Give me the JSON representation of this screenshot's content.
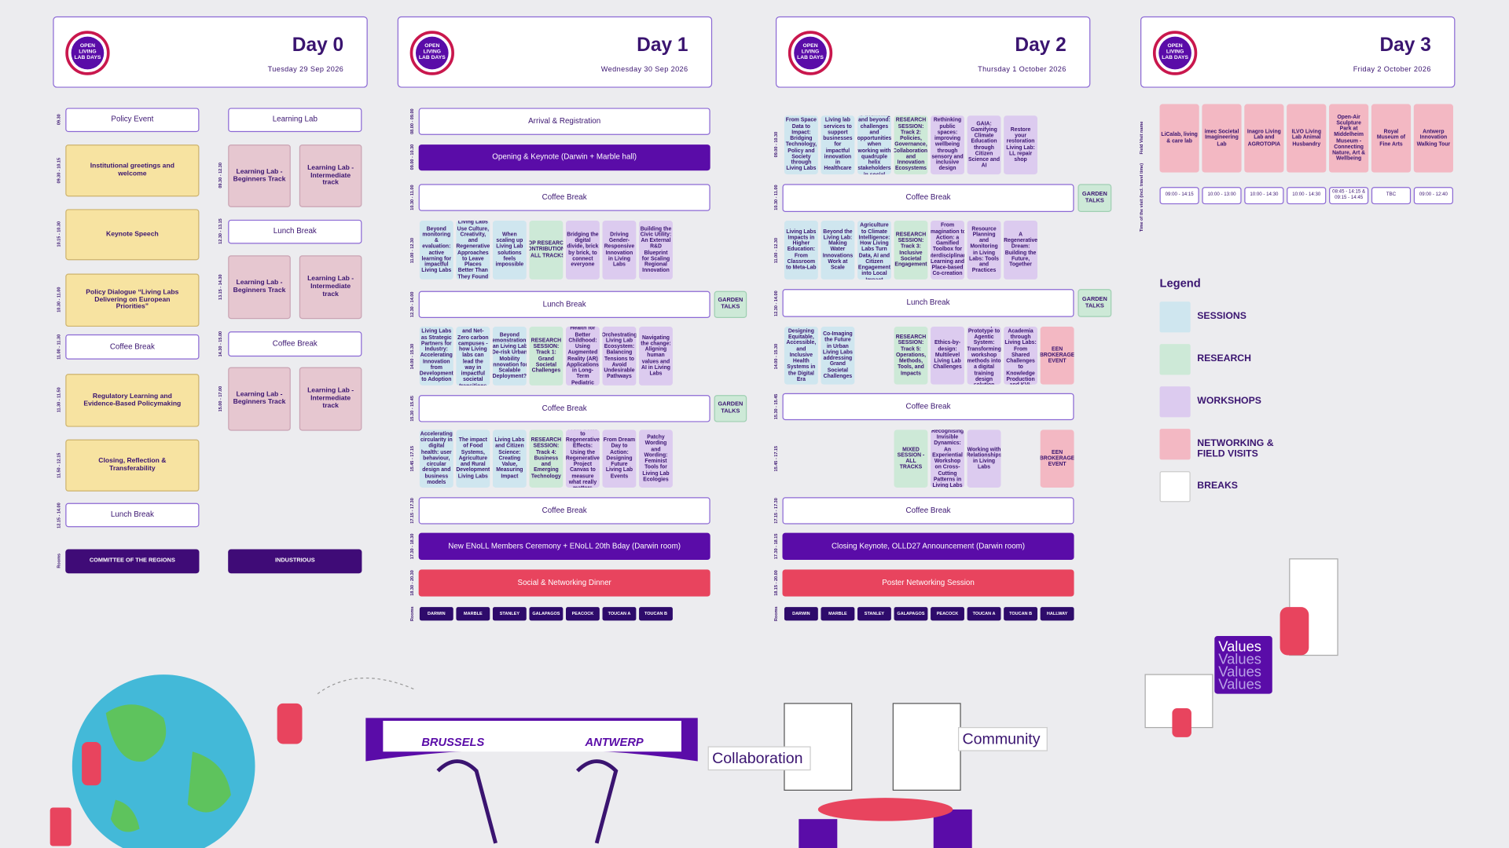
{
  "days": [
    {
      "logo": "OPEN LIVING LAB DAYS",
      "title": "Day 0",
      "date": "Tuesday 29 Sep 2026",
      "times": [
        "09.30",
        "09.30 - 10.15",
        "10.15 - 10.30",
        "10.30 - 11.00",
        "11.00 - 11.30",
        "11.30 - 11.50",
        "11.50 - 12.15",
        "12.15 - 14.00",
        "Rooms",
        "09.30 - 12.30",
        "12.30 - 13.15",
        "13.15 - 14.30",
        "14.30 - 15.00",
        "15.00 - 17.00"
      ],
      "blocks": [
        {
          "text": "Policy Event",
          "kind": "w"
        },
        {
          "text": "Institutional greetings and welcome",
          "kind": "y"
        },
        {
          "text": "Keynote Speech",
          "kind": "y"
        },
        {
          "text": "Policy Dialogue “Living Labs Delivering on European Priorities”",
          "kind": "y"
        },
        {
          "text": "Coffee Break",
          "kind": "w"
        },
        {
          "text": "Regulatory Learning and Evidence-Based Policymaking",
          "kind": "y"
        },
        {
          "text": "Closing, Reflection & Transferability",
          "kind": "y"
        },
        {
          "text": "Lunch Break",
          "kind": "w"
        },
        {
          "text": "COMMITTEE OF THE REGIONS",
          "kind": "room"
        },
        {
          "text": "Learning Lab",
          "kind": "w"
        },
        {
          "text": "Learning Lab - Beginners Track",
          "kind": "p"
        },
        {
          "text": "Learning Lab - Intermediate track",
          "kind": "p"
        },
        {
          "text": "Lunch Break",
          "kind": "w"
        },
        {
          "text": "Learning Lab - Beginners Track",
          "kind": "p"
        },
        {
          "text": "Learning Lab - Intermediate track",
          "kind": "p"
        },
        {
          "text": "Coffee Break",
          "kind": "w"
        },
        {
          "text": "Learning Lab - Beginners Track",
          "kind": "p"
        },
        {
          "text": "Learning Lab - Intermediate track",
          "kind": "p"
        },
        {
          "text": "INDUSTRIOUS",
          "kind": "room"
        }
      ]
    },
    {
      "logo": "OPEN LIVING LAB DAYS",
      "title": "Day 1",
      "date": "Wednesday 30 Sep 2026",
      "times": [
        "08.00 - 09.00",
        "09.00 - 10.30",
        "10.30 - 11.00",
        "11.00 - 12.30",
        "12.30 - 14.00",
        "14.00 - 15.30",
        "15.30 - 15.45",
        "15.45 - 17.15",
        "17.15 - 17.30",
        "17.30 - 18.30",
        "18.30 - 20.30",
        "Rooms"
      ],
      "blocks": [
        {
          "text": "Arrival & Registration",
          "kind": "w"
        },
        {
          "text": "Opening & Keynote (Darwin + Marble hall)",
          "kind": "key"
        },
        {
          "text": "Coffee Break",
          "kind": "w"
        },
        {
          "text": "Beyond monitoring & evaluation: active learning for impactful Living Labs",
          "kind": "s"
        },
        {
          "text": "How Can Living Labs Use Culture, Creativity, and Regenerative Approaches to Leave Places Better Than They Found Them?",
          "kind": "s"
        },
        {
          "text": "When scaling up Living Lab solutions feels impossible",
          "kind": "s"
        },
        {
          "text": "TOP RESEARCH CONTRIBUTIONS - ALL TRACKS",
          "kind": "r"
        },
        {
          "text": "Bridging the digital divide, brick by brick, to connect everyone",
          "kind": "k"
        },
        {
          "text": "Driving Gender-Responsive Innovation in Living Labs",
          "kind": "k"
        },
        {
          "text": "Building the Civic Utility: An External R&D Blueprint for Scaling Regional Innovation",
          "kind": "k"
        },
        {
          "text": "Lunch Break",
          "kind": "w"
        },
        {
          "text": "GARDEN TALKS",
          "kind": "g"
        },
        {
          "text": "Living Labs as Strategic Partners for Industry: Accelerating Innovation from Development to Adoption",
          "kind": "s"
        },
        {
          "text": "Sustainable and Net-Zero carbon campuses - how Living labs can lead the way in impactful societal transitions",
          "kind": "s"
        },
        {
          "text": "Beyond Demonstrations: Can Living Labs De-risk Urban Mobility Innovation for Scalable Deployment?",
          "kind": "s"
        },
        {
          "text": "RESEARCH SESSION: Track 1: Grand Societal Challenges",
          "kind": "r"
        },
        {
          "text": "Better Health for Better Childhood: Using Augmented Reality (AR) Applications in Long-Term Pediatric Care",
          "kind": "k"
        },
        {
          "text": "Orchestrating Living Lab Ecosystem: Balancing Tensions to Avoid Undesirable Pathways",
          "kind": "k"
        },
        {
          "text": "Navigating the change: Aligning human values and AI in Living Labs",
          "kind": "k"
        },
        {
          "text": "Coffee Break",
          "kind": "w"
        },
        {
          "text": "GARDEN TALKS",
          "kind": "g"
        },
        {
          "text": "Accelerating circularity in digital health: user behaviour, circular design and business models",
          "kind": "s"
        },
        {
          "text": "The impact of Food Systems, Agriculture and Rural Development Living Labs",
          "kind": "s"
        },
        {
          "text": "Living Labs and Citizen Science: Creating Value, Measuring Impact",
          "kind": "s"
        },
        {
          "text": "RESEARCH SESSION: Track 4: Business and Emerging Technology",
          "kind": "r"
        },
        {
          "text": "From Goals to Regenerative Effects: Using the Regenerative Project Canvas to measure what really matters",
          "kind": "k"
        },
        {
          "text": "From Dream Day to Action: Designing Future Living Lab Events",
          "kind": "k"
        },
        {
          "text": "Patchy Wording and Wording: Feminist Tools for Living Lab Ecologies",
          "kind": "k"
        },
        {
          "text": "Coffee Break",
          "kind": "w"
        },
        {
          "text": "New ENoLL Members Ceremony + ENoLL 20th Bday (Darwin room)",
          "kind": "key"
        },
        {
          "text": "Social & Networking Dinner",
          "kind": "red"
        }
      ],
      "rooms": [
        "DARWIN",
        "MARBLE",
        "STANLEY",
        "GALAPAGOS",
        "PEACOCK",
        "TOUCAN A",
        "TOUCAN B"
      ]
    },
    {
      "logo": "OPEN LIVING LAB DAYS",
      "title": "Day 2",
      "date": "Thursday 1 October 2026",
      "times": [
        "09.00 - 10.30",
        "10.30 - 11.00",
        "11.00 - 12.30",
        "12.30 - 14.00",
        "14.00 - 15.30",
        "15.30 - 15.45",
        "15.45 - 17.15",
        "17.15 - 17.30",
        "17.30 - 18.15",
        "18.15 - 20.00",
        "Rooms"
      ],
      "blocks": [
        {
          "text": "From Space Data to Impact: Bridging Technology, Policy and Society through Living Labs",
          "kind": "s"
        },
        {
          "text": "Living lab services to support businesses for impactful innovation in Healthcare",
          "kind": "s"
        },
        {
          "text": "From onboarding to debriefing and beyond: challenges and opportunities when working with quadruple helix stakeholders in social innovation projects",
          "kind": "s"
        },
        {
          "text": "RESEARCH SESSION: Track 2: Policies, Governance, Collaboration, and Innovation Ecosystems",
          "kind": "r"
        },
        {
          "text": "Rethinking public spaces: improving wellbeing through sensory and inclusive design",
          "kind": "k"
        },
        {
          "text": "GAIA: Gamifying Climate Education through Citizen Science and AI",
          "kind": "k"
        },
        {
          "text": "Restore your restoration Living Lab: LL repair shop",
          "kind": "k"
        },
        {
          "text": "Coffee Break",
          "kind": "w"
        },
        {
          "text": "GARDEN TALKS",
          "kind": "g"
        },
        {
          "text": "Living Labs Impacts in Higher Education: From Classroom to Meta-Lab",
          "kind": "s"
        },
        {
          "text": "Beyond the Living Lab: Making Water Innovations Work at Scale",
          "kind": "s"
        },
        {
          "text": "From Urban Agriculture to Climate Intelligence: How Living Labs Turn Data, AI and Citizen Engagement into Local Impact",
          "kind": "s"
        },
        {
          "text": "RESEARCH SESSION: Track 3: Inclusive Societal Engagement",
          "kind": "r"
        },
        {
          "text": "From Imagination to Action: a Gamified Toolbox for Interdisciplinary Learning and Place-based Co-creation",
          "kind": "k"
        },
        {
          "text": "Resource Planning and Monitoring in Living Labs: Tools and Practices",
          "kind": "k"
        },
        {
          "text": "A Regenerative Dream: Building the Future, Together",
          "kind": "k"
        },
        {
          "text": "Lunch Break",
          "kind": "w"
        },
        {
          "text": "GARDEN TALKS",
          "kind": "g"
        },
        {
          "text": "Designing Equitable, Accessible, and Inclusive Health Systems in the Digital Era",
          "kind": "s"
        },
        {
          "text": "Co-Imaging the Future in Urban Living Labs addressing Grand Societal Challenges",
          "kind": "s"
        },
        {
          "text": "RESEARCH SESSION: Track 5: Operations, Methods, Tools, and Impacts",
          "kind": "r"
        },
        {
          "text": "Ethics-by-design: Multilevel Living Lab Challenges",
          "kind": "k"
        },
        {
          "text": "From Paper Prototype to Agentic System: Transforming workshop methods into a digital training design solution",
          "kind": "k"
        },
        {
          "text": "Bridging Industry and Academia through Living Labs: From Shared Challenges to Knowledge Production and KVI-Driven Impact",
          "kind": "k"
        },
        {
          "text": "EEN BROKERAGE EVENT",
          "kind": "n"
        },
        {
          "text": "Coffee Break",
          "kind": "w"
        },
        {
          "text": "MIXED SESSION - ALL TRACKS",
          "kind": "r"
        },
        {
          "text": "Recognising Invisible Dynamics: An Experiential Workshop on Cross-Cutting Patterns in Living Labs",
          "kind": "k"
        },
        {
          "text": "Working with Relationships in Living Labs",
          "kind": "k"
        },
        {
          "text": "EEN BROKERAGE EVENT",
          "kind": "n"
        },
        {
          "text": "Coffee Break",
          "kind": "w"
        },
        {
          "text": "Closing Keynote, OLLD27 Announcement (Darwin room)",
          "kind": "key"
        },
        {
          "text": "Poster Networking Session",
          "kind": "red"
        }
      ],
      "rooms": [
        "DARWIN",
        "MARBLE",
        "STANLEY",
        "GALAPAGOS",
        "PEACOCK",
        "TOUCAN A",
        "TOUCAN B",
        "HALLWAY"
      ]
    },
    {
      "logo": "OPEN LIVING LAB DAYS",
      "title": "Day 3",
      "date": "Friday 2 October 2026",
      "row_labels": [
        "Field Visit name",
        "Time of the visit (incl. travel time)"
      ],
      "field_visits": [
        {
          "name": "LiCalab, living & care lab",
          "time": "09:00 - 14:15"
        },
        {
          "name": "imec Societal Imagineering Lab",
          "time": "10:00 - 13:00"
        },
        {
          "name": "Inagro Living Lab and AGROTOPIA",
          "time": "10:00 - 14:30"
        },
        {
          "name": "ILVO Living Lab Animal Husbandry",
          "time": "10:00 - 14:30"
        },
        {
          "name": "Open-Air Sculpture Park at Middelheim Museum - Connecting Nature, Art & Wellbeing",
          "time": "08:45 - 14:15 & 09:15 - 14:45"
        },
        {
          "name": "Royal Museum of Fine Arts",
          "time": "TBC"
        },
        {
          "name": "Antwerp Innovation Walking Tour",
          "time": "09:00 - 12:40"
        }
      ]
    }
  ],
  "legend": {
    "title": "Legend",
    "items": [
      {
        "label": "SESSIONS",
        "kind": "s"
      },
      {
        "label": "RESEARCH",
        "kind": "r"
      },
      {
        "label": "WORKSHOPS",
        "kind": "k"
      },
      {
        "label": "NETWORKING & FIELD VISITS",
        "kind": "n"
      },
      {
        "label": "BREAKS",
        "kind": "w"
      }
    ]
  },
  "illustrations": {
    "cities": [
      "BRUSSELS",
      "ANTWERP"
    ],
    "words": [
      "Collaboration",
      "Community"
    ],
    "values": [
      "Values",
      "Values",
      "Values",
      "Values"
    ]
  }
}
